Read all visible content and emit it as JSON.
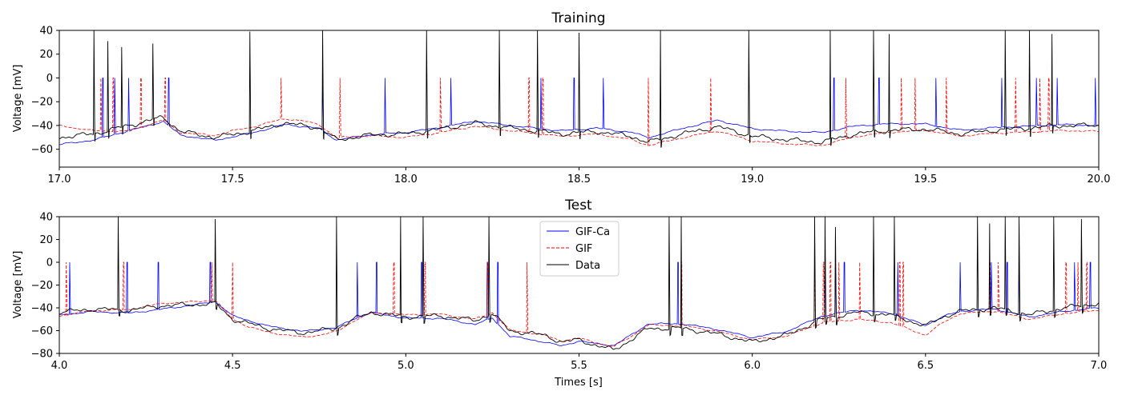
{
  "chart_data": [
    {
      "type": "line",
      "title": "Training",
      "xlabel": "",
      "ylabel": "Voltage [mV]",
      "xlim": [
        17.0,
        20.0
      ],
      "ylim": [
        -75,
        40
      ],
      "xticks": [
        "17.0",
        "17.5",
        "18.0",
        "18.5",
        "19.0",
        "19.5",
        "20.0"
      ],
      "yticks": [
        "40",
        "20",
        "0",
        "−20",
        "−40",
        "−60"
      ],
      "baseline": [
        [
          17.0,
          -50
        ],
        [
          17.1,
          -47
        ],
        [
          17.2,
          -40
        ],
        [
          17.3,
          -33
        ],
        [
          17.35,
          -45
        ],
        [
          17.45,
          -50
        ],
        [
          17.55,
          -45
        ],
        [
          17.65,
          -38
        ],
        [
          17.75,
          -42
        ],
        [
          17.8,
          -52
        ],
        [
          17.9,
          -48
        ],
        [
          18.0,
          -47
        ],
        [
          18.1,
          -43
        ],
        [
          18.2,
          -38
        ],
        [
          18.3,
          -42
        ],
        [
          18.45,
          -47
        ],
        [
          18.55,
          -45
        ],
        [
          18.65,
          -49
        ],
        [
          18.7,
          -54
        ],
        [
          18.8,
          -47
        ],
        [
          18.9,
          -41
        ],
        [
          19.0,
          -49
        ],
        [
          19.1,
          -52
        ],
        [
          19.2,
          -54
        ],
        [
          19.3,
          -47
        ],
        [
          19.4,
          -44
        ],
        [
          19.5,
          -43
        ],
        [
          19.6,
          -47
        ],
        [
          19.7,
          -44
        ],
        [
          19.8,
          -42
        ],
        [
          19.9,
          -40
        ],
        [
          20.0,
          -40
        ]
      ],
      "series": [
        {
          "name": "GIF-Ca",
          "color": "#0000ff",
          "dash": "solid",
          "offset": [
            [
              17.0,
              -6
            ],
            [
              17.5,
              -2
            ],
            [
              18.0,
              1
            ],
            [
              18.6,
              3
            ],
            [
              19.2,
              8
            ],
            [
              19.6,
              3
            ],
            [
              20.0,
              0
            ]
          ],
          "spikes": [
            17.125,
            17.16,
            17.2,
            17.315,
            17.76,
            17.94,
            18.13,
            18.39,
            18.485,
            18.57,
            19.235,
            19.365,
            19.53,
            19.72,
            19.82,
            19.88,
            19.99
          ]
        },
        {
          "name": "GIF",
          "color": "#ff0000",
          "dash": "4,2",
          "offset": [
            [
              17.0,
              10
            ],
            [
              17.2,
              -5
            ],
            [
              17.5,
              3
            ],
            [
              17.7,
              4
            ],
            [
              18.0,
              -3
            ],
            [
              18.5,
              -2
            ],
            [
              19.0,
              -4
            ],
            [
              19.5,
              -1
            ],
            [
              20.0,
              -5
            ]
          ],
          "spikes": [
            17.12,
            17.155,
            17.235,
            17.305,
            17.64,
            17.81,
            18.1,
            18.355,
            18.395,
            18.7,
            18.88,
            19.27,
            19.43,
            19.47,
            19.56,
            19.76,
            19.83,
            19.855
          ]
        },
        {
          "name": "Data",
          "color": "#000000",
          "dash": "solid",
          "offset": [
            [
              17.0,
              0
            ],
            [
              20.0,
              0
            ]
          ],
          "spikes": [
            [
              17.1,
              40
            ],
            [
              17.14,
              31
            ],
            [
              17.18,
              26
            ],
            [
              17.27,
              29
            ],
            [
              17.55,
              39
            ],
            [
              17.76,
              40
            ],
            [
              18.06,
              40
            ],
            [
              18.27,
              40
            ],
            [
              18.38,
              40
            ],
            [
              18.5,
              38
            ],
            [
              18.735,
              40
            ],
            [
              18.99,
              40
            ],
            [
              19.225,
              40
            ],
            [
              19.35,
              40
            ],
            [
              19.395,
              37
            ],
            [
              19.73,
              40
            ],
            [
              19.8,
              40
            ],
            [
              19.865,
              37
            ]
          ]
        }
      ]
    },
    {
      "type": "line",
      "title": "Test",
      "xlabel": "Times [s]",
      "ylabel": "Voltage [mV]",
      "xlim": [
        4.0,
        7.0
      ],
      "ylim": [
        -80,
        40
      ],
      "xticks": [
        "4.0",
        "4.5",
        "5.0",
        "5.5",
        "6.0",
        "6.5",
        "7.0"
      ],
      "yticks": [
        "40",
        "20",
        "0",
        "−20",
        "−40",
        "−60",
        "−80"
      ],
      "baseline": [
        [
          4.0,
          -44
        ],
        [
          4.1,
          -41
        ],
        [
          4.2,
          -42
        ],
        [
          4.3,
          -38
        ],
        [
          4.4,
          -37
        ],
        [
          4.45,
          -36
        ],
        [
          4.5,
          -50
        ],
        [
          4.6,
          -58
        ],
        [
          4.7,
          -62
        ],
        [
          4.8,
          -58
        ],
        [
          4.85,
          -50
        ],
        [
          4.9,
          -44
        ],
        [
          5.0,
          -48
        ],
        [
          5.1,
          -47
        ],
        [
          5.2,
          -51
        ],
        [
          5.25,
          -45
        ],
        [
          5.3,
          -60
        ],
        [
          5.4,
          -64
        ],
        [
          5.45,
          -70
        ],
        [
          5.5,
          -68
        ],
        [
          5.55,
          -73
        ],
        [
          5.6,
          -77
        ],
        [
          5.65,
          -68
        ],
        [
          5.7,
          -58
        ],
        [
          5.8,
          -58
        ],
        [
          5.9,
          -63
        ],
        [
          6.0,
          -70
        ],
        [
          6.1,
          -64
        ],
        [
          6.2,
          -50
        ],
        [
          6.3,
          -44
        ],
        [
          6.4,
          -46
        ],
        [
          6.5,
          -56
        ],
        [
          6.55,
          -48
        ],
        [
          6.6,
          -43
        ],
        [
          6.7,
          -40
        ],
        [
          6.8,
          -46
        ],
        [
          6.9,
          -40
        ],
        [
          7.0,
          -36
        ]
      ],
      "series": [
        {
          "name": "GIF-Ca",
          "color": "#0000ff",
          "dash": "solid",
          "offset": [
            [
              4.0,
              -2
            ],
            [
              4.3,
              -3
            ],
            [
              4.5,
              3
            ],
            [
              5.0,
              -1
            ],
            [
              5.4,
              -6
            ],
            [
              5.6,
              4
            ],
            [
              6.0,
              4
            ],
            [
              6.3,
              2
            ],
            [
              6.6,
              0
            ],
            [
              7.0,
              -4
            ]
          ],
          "spikes": [
            4.03,
            4.195,
            4.285,
            4.435,
            4.86,
            4.915,
            5.045,
            5.235,
            5.265,
            5.785,
            6.21,
            6.24,
            6.265,
            6.42,
            6.6,
            6.69,
            6.735,
            6.77,
            6.93,
            6.975
          ]
        },
        {
          "name": "GIF",
          "color": "#ff0000",
          "dash": "4,2",
          "offset": [
            [
              4.0,
              -3
            ],
            [
              4.3,
              2
            ],
            [
              4.45,
              3
            ],
            [
              4.55,
              -3
            ],
            [
              4.75,
              -4
            ],
            [
              5.0,
              2
            ],
            [
              5.4,
              0
            ],
            [
              5.6,
              3
            ],
            [
              6.0,
              2
            ],
            [
              6.3,
              -6
            ],
            [
              6.5,
              -8
            ],
            [
              6.6,
              -2
            ],
            [
              7.0,
              -6
            ]
          ],
          "spikes": [
            4.02,
            4.185,
            4.44,
            4.5,
            4.965,
            5.055,
            5.235,
            5.35,
            5.795,
            6.18,
            6.205,
            6.225,
            6.25,
            6.31,
            6.425,
            6.435,
            6.685,
            6.71,
            6.905,
            6.94,
            6.965
          ]
        },
        {
          "name": "Data",
          "color": "#000000",
          "dash": "solid",
          "offset": [
            [
              4.0,
              0
            ],
            [
              7.0,
              0
            ]
          ],
          "spikes": [
            [
              4.17,
              40
            ],
            [
              4.45,
              38
            ],
            [
              4.8,
              40
            ],
            [
              4.985,
              40
            ],
            [
              5.05,
              40
            ],
            [
              5.24,
              40
            ],
            [
              5.76,
              40
            ],
            [
              5.795,
              40
            ],
            [
              6.18,
              40
            ],
            [
              6.21,
              40
            ],
            [
              6.24,
              31
            ],
            [
              6.35,
              40
            ],
            [
              6.41,
              40
            ],
            [
              6.65,
              40
            ],
            [
              6.685,
              34
            ],
            [
              6.73,
              40
            ],
            [
              6.77,
              40
            ],
            [
              6.87,
              40
            ],
            [
              6.95,
              38
            ]
          ]
        }
      ]
    }
  ],
  "legend": {
    "items": [
      {
        "label": "GIF-Ca",
        "color": "#0000ff",
        "dash": "solid"
      },
      {
        "label": "GIF",
        "color": "#ff0000",
        "dash": "4,2"
      },
      {
        "label": "Data",
        "color": "#000000",
        "dash": "solid"
      }
    ]
  }
}
